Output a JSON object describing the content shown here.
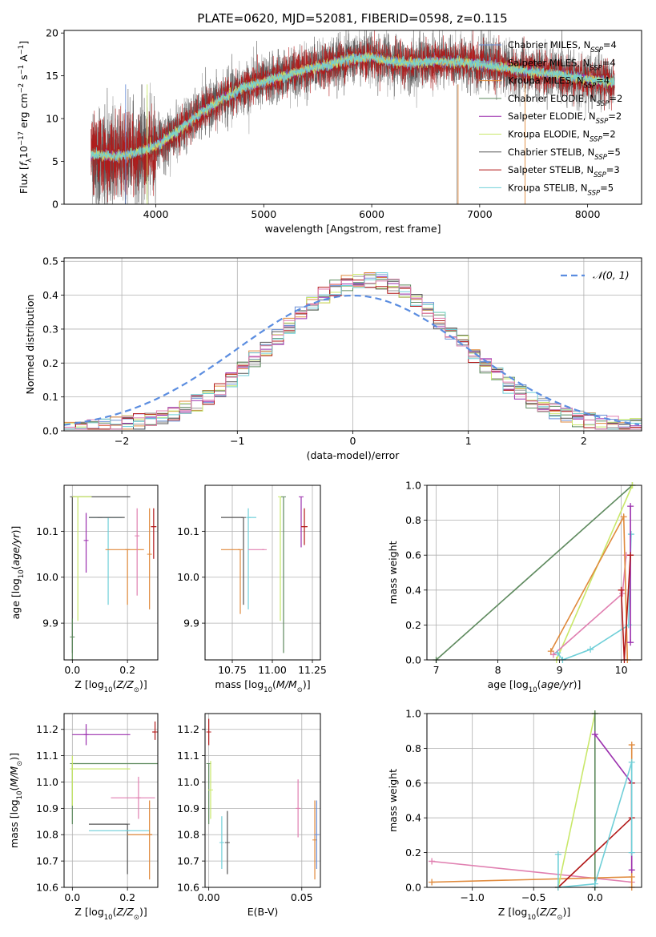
{
  "figure": {
    "title": "PLATE=0620, MJD=52081, FIBERID=0598, z=0.115"
  },
  "chart_data": [
    {
      "id": "spectrum",
      "type": "line",
      "title": "PLATE=0620, MJD=52081, FIBERID=0598, z=0.115",
      "xlabel": "wavelength [Angstrom, rest frame]",
      "ylabel": "Flux [f_λ 10^-17 erg cm^-2 s^-1 A^-1]",
      "xlim": [
        3150,
        8500
      ],
      "ylim": [
        0,
        20.3
      ],
      "xticks": [
        4000,
        5000,
        6000,
        7000,
        8000
      ],
      "yticks": [
        0,
        5,
        10,
        15,
        20
      ],
      "grid": false,
      "legend_position": "right",
      "x": [
        3400,
        3600,
        3800,
        4000,
        4200,
        4400,
        4600,
        4800,
        5000,
        5200,
        5400,
        5600,
        5800,
        6000,
        6200,
        6400,
        6600,
        6800,
        7000,
        7200,
        7400,
        7600,
        7800,
        8000,
        8250
      ],
      "model_flux": [
        5.8,
        5.6,
        5.9,
        6.8,
        8.5,
        10.5,
        12.2,
        13.6,
        14.3,
        15.0,
        15.8,
        16.3,
        17.0,
        17.2,
        16.6,
        16.5,
        16.7,
        16.6,
        16.4,
        16.0,
        15.6,
        15.3,
        15.0,
        14.6,
        14.2
      ],
      "series": [
        {
          "name": "Chabrier MILES, N_SSP=4",
          "color": "#6b8fd6"
        },
        {
          "name": "Salpeter MILES, N_SSP=4",
          "color": "#9a9a9a"
        },
        {
          "name": "Kroupa MILES, N_SSP=4",
          "color": "#e08a3c"
        },
        {
          "name": "Chabrier ELODIE, N_SSP=2",
          "color": "#5e8a5e"
        },
        {
          "name": "Salpeter ELODIE, N_SSP=2",
          "color": "#9b2fae"
        },
        {
          "name": "Kroupa ELODIE, N_SSP=2",
          "color": "#c9e86a"
        },
        {
          "name": "Chabrier STELIB, N_SSP=5",
          "color": "#555555"
        },
        {
          "name": "Salpeter STELIB, N_SSP=3",
          "color": "#b21818"
        },
        {
          "name": "Kroupa STELIB, N_SSP=5",
          "color": "#6fcfd8"
        }
      ]
    },
    {
      "id": "residuals",
      "type": "line",
      "xlabel": "(data-model)/error",
      "ylabel": "Normed distribution",
      "xlim": [
        -2.5,
        2.5
      ],
      "ylim": [
        0,
        0.51
      ],
      "xticks": [
        -2,
        -1,
        0,
        1,
        2
      ],
      "yticks": [
        0.0,
        0.1,
        0.2,
        0.3,
        0.4,
        0.5
      ],
      "grid": true,
      "legend_position": "top-right",
      "normal_label": "𝒩(0, 1)",
      "normal_color": "#5b8de0",
      "bin_edges_start": -2.5,
      "bin_width": 0.1
    },
    {
      "id": "age_vs_Z",
      "type": "scatter",
      "xlabel": "Z [log10(Z/Z⊙)]",
      "ylabel": "age [log10(age/yr)]",
      "xlim": [
        -0.03,
        0.31
      ],
      "ylim": [
        9.82,
        10.2
      ],
      "xticks": [
        0.0,
        0.2
      ],
      "yticks": [
        9.9,
        10.0,
        10.1
      ],
      "grid": true,
      "points": [
        {
          "x": 0.0,
          "y": 10.175,
          "xerr": [
            0.0,
            0.21
          ],
          "yerr": [
            0.34,
            0.0
          ],
          "color": "#555555"
        },
        {
          "x": 0.02,
          "y": 10.175,
          "xerr": [
            0.02,
            0.05
          ],
          "yerr": [
            0.27,
            0.0
          ],
          "color": "#c9e86a"
        },
        {
          "x": 0.13,
          "y": 10.13,
          "xerr": [
            0.07,
            0.05
          ],
          "yerr": [
            0.19,
            0.0
          ],
          "color": "#6fcfd8"
        },
        {
          "x": 0.1,
          "y": 10.13,
          "xerr": [
            0.04,
            0.09
          ],
          "yerr": [
            0.0,
            0.0
          ],
          "color": "#555555"
        },
        {
          "x": 0.2,
          "y": 10.06,
          "xerr": [
            0.08,
            0.06
          ],
          "yerr": [
            0.12,
            0.0
          ],
          "color": "#e08a3c"
        },
        {
          "x": 0.05,
          "y": 10.08,
          "xerr": [
            0.0,
            0.0
          ],
          "yerr": [
            0.07,
            0.06
          ],
          "color": "#9b2fae"
        },
        {
          "x": 0.235,
          "y": 10.09,
          "xerr": [
            0.0,
            0.0
          ],
          "yerr": [
            0.13,
            0.06
          ],
          "color": "#e07fb0"
        },
        {
          "x": 0.295,
          "y": 10.11,
          "xerr": [
            0.01,
            0.01
          ],
          "yerr": [
            0.07,
            0.04
          ],
          "color": "#b21818"
        },
        {
          "x": 0.28,
          "y": 10.05,
          "xerr": [
            0.0,
            0.0
          ],
          "yerr": [
            0.12,
            0.1
          ],
          "color": "#e08a3c"
        },
        {
          "x": 0.0,
          "y": 9.87,
          "xerr": [
            0.0,
            0.0
          ],
          "yerr": [
            0.05,
            0.04
          ],
          "color": "#5e8a5e"
        }
      ]
    },
    {
      "id": "age_vs_mass",
      "type": "scatter",
      "xlabel": "mass [log10(M/M⊙)]",
      "ylabel": "",
      "xlim": [
        10.58,
        11.3
      ],
      "ylim": [
        9.82,
        10.2
      ],
      "xticks": [
        10.75,
        11.0,
        11.25
      ],
      "yticks": [
        9.9,
        10.0,
        10.1
      ],
      "grid": true,
      "points": [
        {
          "x": 10.82,
          "y": 10.13,
          "xerr": [
            0.14,
            0.0
          ],
          "yerr": [
            0.19,
            0.0
          ],
          "color": "#555555"
        },
        {
          "x": 10.85,
          "y": 10.13,
          "xerr": [
            0.0,
            0.05
          ],
          "yerr": [
            0.2,
            0.02
          ],
          "color": "#6fcfd8"
        },
        {
          "x": 10.8,
          "y": 10.06,
          "xerr": [
            0.12,
            0.0
          ],
          "yerr": [
            0.14,
            0.0
          ],
          "color": "#e08a3c"
        },
        {
          "x": 11.05,
          "y": 10.175,
          "xerr": [
            0.0,
            0.0
          ],
          "yerr": [
            0.27,
            0.0
          ],
          "color": "#c9e86a"
        },
        {
          "x": 11.07,
          "y": 10.175,
          "xerr": [
            0.0,
            0.0
          ],
          "yerr": [
            0.34,
            0.0
          ],
          "color": "#5e8a5e"
        },
        {
          "x": 10.95,
          "y": 10.06,
          "xerr": [
            0.1,
            0.0
          ],
          "yerr": [
            0.0,
            0.0
          ],
          "color": "#e07fb0"
        },
        {
          "x": 11.18,
          "y": 10.175,
          "xerr": [
            0.0,
            0.0
          ],
          "yerr": [
            0.11,
            0.0
          ],
          "color": "#9b2fae"
        },
        {
          "x": 11.2,
          "y": 10.11,
          "xerr": [
            0.02,
            0.02
          ],
          "yerr": [
            0.04,
            0.04
          ],
          "color": "#b21818"
        }
      ]
    },
    {
      "id": "weight_vs_age",
      "type": "line",
      "xlabel": "age [log10(age/yr)]",
      "ylabel": "mass weight",
      "xlim": [
        6.85,
        10.33
      ],
      "ylim": [
        0,
        1
      ],
      "xticks": [
        7,
        8,
        9,
        10
      ],
      "yticks": [
        0.0,
        0.2,
        0.4,
        0.6,
        0.8,
        1.0
      ],
      "grid": true,
      "series": [
        {
          "color": "#5e8a5e",
          "x": [
            7.0,
            10.18
          ],
          "y": [
            0.0,
            1.0
          ]
        },
        {
          "color": "#c9e86a",
          "x": [
            8.95,
            10.18
          ],
          "y": [
            0.0,
            1.0
          ]
        },
        {
          "color": "#e07fb0",
          "x": [
            8.9,
            10.02,
            10.08
          ],
          "y": [
            0.03,
            0.38,
            0.6
          ]
        },
        {
          "color": "#e08a3c",
          "x": [
            8.86,
            10.04,
            10.1
          ],
          "y": [
            0.05,
            0.82,
            0.0
          ]
        },
        {
          "color": "#6fcfd8",
          "x": [
            8.97,
            9.05,
            9.5,
            10.12,
            10.16
          ],
          "y": [
            0.04,
            0.0,
            0.06,
            0.2,
            0.72
          ]
        },
        {
          "color": "#9b2fae",
          "x": [
            10.15,
            10.15
          ],
          "y": [
            0.88,
            0.1
          ]
        },
        {
          "color": "#b21818",
          "x": [
            10.0,
            10.05,
            10.15
          ],
          "y": [
            0.4,
            0.0,
            0.6
          ]
        }
      ]
    },
    {
      "id": "mass_vs_Z",
      "type": "scatter",
      "xlabel": "Z [log10(Z/Z⊙)]",
      "ylabel": "mass [log10(M/M⊙)]",
      "xlim": [
        -0.03,
        0.31
      ],
      "ylim": [
        10.6,
        11.26
      ],
      "xticks": [
        0.0,
        0.2
      ],
      "yticks": [
        10.6,
        10.7,
        10.8,
        10.9,
        11.0,
        11.1,
        11.2
      ],
      "grid": true,
      "points": [
        {
          "x": 0.05,
          "y": 11.18,
          "xerr": [
            0.05,
            0.16
          ],
          "yerr": [
            0.04,
            0.04
          ],
          "color": "#9b2fae"
        },
        {
          "x": 0.3,
          "y": 11.19,
          "xerr": [
            0.01,
            0.0
          ],
          "yerr": [
            0.03,
            0.04
          ],
          "color": "#b21818"
        },
        {
          "x": 0.0,
          "y": 11.07,
          "xerr": [
            0.0,
            0.31
          ],
          "yerr": [
            0.23,
            0.0
          ],
          "color": "#5e8a5e"
        },
        {
          "x": 0.0,
          "y": 11.05,
          "xerr": [
            0.0,
            0.21
          ],
          "yerr": [
            0.14,
            0.05
          ],
          "color": "#c9e86a"
        },
        {
          "x": 0.24,
          "y": 10.94,
          "xerr": [
            0.1,
            0.06
          ],
          "yerr": [
            0.08,
            0.08
          ],
          "color": "#e07fb0"
        },
        {
          "x": 0.2,
          "y": 10.84,
          "xerr": [
            0.14,
            0.0
          ],
          "yerr": [
            0.19,
            0.0
          ],
          "color": "#555555"
        },
        {
          "x": 0.2,
          "y": 10.815,
          "xerr": [
            0.14,
            0.08
          ],
          "yerr": [
            0.0,
            0.0
          ],
          "color": "#6fcfd8"
        },
        {
          "x": 0.28,
          "y": 10.8,
          "xerr": [
            0.08,
            0.01
          ],
          "yerr": [
            0.17,
            0.13
          ],
          "color": "#e08a3c"
        }
      ]
    },
    {
      "id": "mass_vs_ebv",
      "type": "scatter",
      "xlabel": "E(B-V)",
      "ylabel": "",
      "xlim": [
        -0.002,
        0.06
      ],
      "ylim": [
        10.6,
        11.26
      ],
      "xticks": [
        0.0,
        0.05
      ],
      "yticks": [
        10.6,
        10.7,
        10.8,
        10.9,
        11.0,
        11.1,
        11.2
      ],
      "grid": true,
      "points": [
        {
          "x": 0.0,
          "y": 11.19,
          "yerr": [
            0.05,
            0.05
          ],
          "color": "#b21818"
        },
        {
          "x": 0.0,
          "y": 11.07,
          "yerr": [
            0.23,
            0.0
          ],
          "color": "#5e8a5e"
        },
        {
          "x": 0.001,
          "y": 10.97,
          "yerr": [
            0.11,
            0.11
          ],
          "color": "#c9e86a"
        },
        {
          "x": 0.007,
          "y": 10.77,
          "yerr": [
            0.1,
            0.1
          ],
          "color": "#6fcfd8"
        },
        {
          "x": 0.01,
          "y": 10.77,
          "yerr": [
            0.12,
            0.12
          ],
          "color": "#555555"
        },
        {
          "x": 0.048,
          "y": 10.9,
          "yerr": [
            0.11,
            0.11
          ],
          "color": "#e07fb0"
        },
        {
          "x": 0.057,
          "y": 10.78,
          "yerr": [
            0.15,
            0.15
          ],
          "color": "#e08a3c"
        },
        {
          "x": 0.058,
          "y": 10.8,
          "yerr": [
            0.13,
            0.13
          ],
          "color": "#6b8fd6"
        }
      ]
    },
    {
      "id": "weight_vs_Z",
      "type": "line",
      "xlabel": "Z [log10(Z/Z⊙)]",
      "ylabel": "mass weight",
      "xlim": [
        -1.37,
        0.38
      ],
      "ylim": [
        0,
        1
      ],
      "xticks": [
        -1.0,
        -0.5,
        0.0
      ],
      "yticks": [
        0.0,
        0.2,
        0.4,
        0.6,
        0.8,
        1.0
      ],
      "grid": true,
      "series": [
        {
          "color": "#e07fb0",
          "x": [
            -1.33,
            0.3
          ],
          "y": [
            0.15,
            0.03
          ]
        },
        {
          "color": "#e08a3c",
          "x": [
            -1.33,
            0.3,
            0.3,
            0.3
          ],
          "y": [
            0.03,
            0.06,
            0.82,
            0.0
          ]
        },
        {
          "color": "#c9e86a",
          "x": [
            -0.3,
            0.0
          ],
          "y": [
            0.0,
            1.0
          ]
        },
        {
          "color": "#5e8a5e",
          "x": [
            0.0,
            0.0
          ],
          "y": [
            0.0,
            1.0
          ]
        },
        {
          "color": "#9b2fae",
          "x": [
            0.0,
            0.3,
            0.3
          ],
          "y": [
            0.88,
            0.6,
            0.1
          ]
        },
        {
          "color": "#b21818",
          "x": [
            -0.3,
            0.3,
            0.3
          ],
          "y": [
            0.0,
            0.4,
            0.6
          ]
        },
        {
          "color": "#6fcfd8",
          "x": [
            -0.3,
            -0.3,
            0.0,
            0.3,
            0.3
          ],
          "y": [
            0.19,
            0.0,
            0.02,
            0.72,
            0.2
          ]
        }
      ]
    }
  ]
}
